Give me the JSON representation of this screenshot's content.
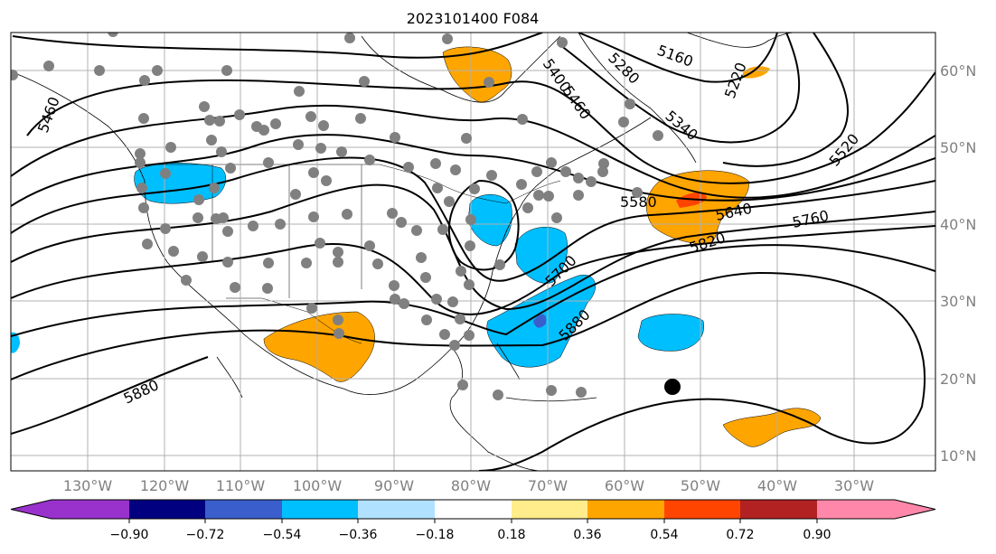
{
  "title": "2023101400 F084",
  "axes": {
    "lon_labels": [
      "130°W",
      "120°W",
      "110°W",
      "100°W",
      "90°W",
      "80°W",
      "70°W",
      "60°W",
      "50°W",
      "40°W",
      "30°W"
    ],
    "lat_labels": [
      "60°N",
      "50°N",
      "40°N",
      "30°N",
      "20°N",
      "10°N"
    ]
  },
  "contour_labels": {
    "c5460_west": "5460",
    "c5400": "5400",
    "c5460": "5460",
    "c5280": "5280",
    "c5160": "5160",
    "c5220": "5220",
    "c5340": "5340",
    "c5520": "5520",
    "c5580": "5580",
    "c5640": "5640",
    "c5760": "5760",
    "c5820": "5820",
    "c5700": "5700",
    "c5880_east": "5880",
    "c5880_west": "5880"
  },
  "colorbar": {
    "colors": [
      "#9932CC",
      "#000080",
      "#3A5FCD",
      "#00BFFF",
      "#B0E2FF",
      "#FFFFFF",
      "#FFEC8B",
      "#FFA500",
      "#FF4500",
      "#B22222",
      "#FF88AA"
    ],
    "ticks": [
      "−0.90",
      "−0.72",
      "−0.54",
      "−0.36",
      "−0.18",
      "0.18",
      "0.36",
      "0.54",
      "0.72",
      "0.90"
    ]
  },
  "chart_data": {
    "type": "contour",
    "title": "2023101400 F084",
    "contour_levels": [
      5160,
      5220,
      5280,
      5340,
      5400,
      5460,
      5520,
      5580,
      5640,
      5700,
      5760,
      5820,
      5880
    ],
    "fill_levels": [
      -0.9,
      -0.72,
      -0.54,
      -0.36,
      -0.18,
      0.18,
      0.36,
      0.54,
      0.72,
      0.9
    ],
    "lon_range": [
      -140,
      -19
    ],
    "lat_range": [
      8,
      65
    ],
    "grid": true
  }
}
